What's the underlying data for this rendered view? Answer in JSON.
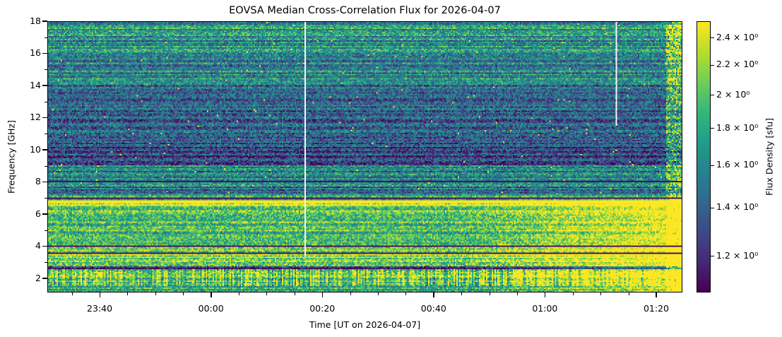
{
  "chart_data": {
    "type": "heatmap",
    "title": "EOVSA Median Cross-Correlation Flux for 2026-04-07",
    "xlabel": "Time [UT on 2026-04-07]",
    "ylabel": "Frequency [GHz]",
    "xlim_minutes_from_midnight": [
      -29.4,
      84.7
    ],
    "x_major_ticks": [
      {
        "value": -20,
        "label": "23:40"
      },
      {
        "value": 0,
        "label": "00:00"
      },
      {
        "value": 20,
        "label": "00:20"
      },
      {
        "value": 40,
        "label": "00:40"
      },
      {
        "value": 60,
        "label": "01:00"
      },
      {
        "value": 80,
        "label": "01:20"
      }
    ],
    "x_minor_tick_step_minutes": 5,
    "ylim": [
      1.12,
      18
    ],
    "y_ticks": [
      {
        "value": 2,
        "label": "2"
      },
      {
        "value": 4,
        "label": "4"
      },
      {
        "value": 6,
        "label": "6"
      },
      {
        "value": 8,
        "label": "8"
      },
      {
        "value": 10,
        "label": "10"
      },
      {
        "value": 12,
        "label": "12"
      },
      {
        "value": 14,
        "label": "14"
      },
      {
        "value": 16,
        "label": "16"
      },
      {
        "value": 18,
        "label": "18"
      }
    ],
    "colorbar": {
      "label": "Flux Density [sfu]",
      "scale": "log",
      "colormap": "viridis",
      "range": [
        1.07,
        2.53
      ],
      "ticks": [
        {
          "value": 2.4,
          "label": "2.4 × 10⁰"
        },
        {
          "value": 2.2,
          "label": "2.2 × 10⁰"
        },
        {
          "value": 2.0,
          "label": "2 × 10⁰"
        },
        {
          "value": 1.8,
          "label": "1.8 × 10⁰"
        },
        {
          "value": 1.6,
          "label": "1.6 × 10⁰"
        },
        {
          "value": 1.4,
          "label": "1.4 × 10⁰"
        },
        {
          "value": 1.2,
          "label": "1.2 × 10⁰"
        }
      ]
    }
  }
}
